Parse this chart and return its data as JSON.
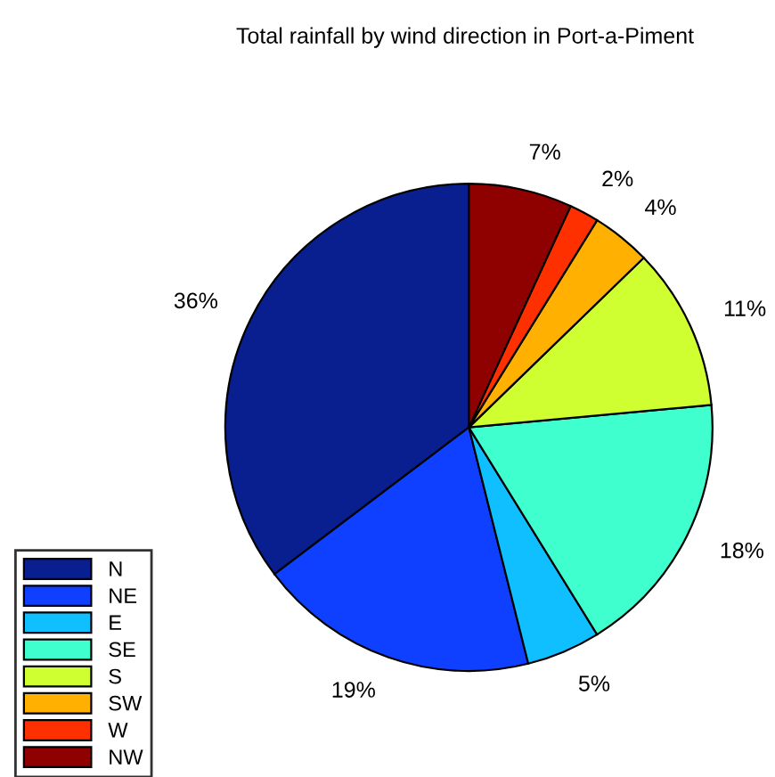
{
  "chart_data": {
    "type": "pie",
    "title": "Total rainfall by wind direction in Port-a-Piment",
    "categories": [
      "N",
      "NE",
      "E",
      "SE",
      "S",
      "SW",
      "W",
      "NW"
    ],
    "values": [
      36,
      19,
      5,
      18,
      11,
      4,
      2,
      7
    ],
    "value_labels": [
      "36%",
      "19%",
      "5%",
      "18%",
      "11%",
      "4%",
      "2%",
      "7%"
    ],
    "colors": [
      "#0a1f8f",
      "#1040ff",
      "#10bfff",
      "#40ffcf",
      "#cfff30",
      "#ffb000",
      "#ff3000",
      "#8f0000"
    ],
    "legend": "bottom left"
  }
}
